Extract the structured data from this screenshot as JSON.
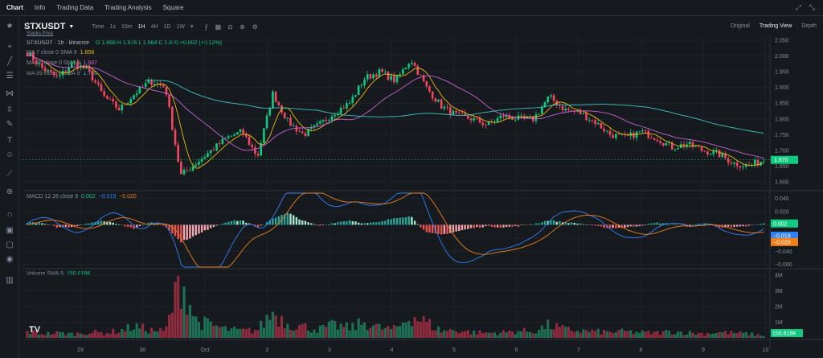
{
  "nav": {
    "tabs": [
      "Chart",
      "Info",
      "Trading Data",
      "Trading Analysis",
      "Square"
    ]
  },
  "symbol": {
    "name": "STXUSDT",
    "sub": "Stacks Price"
  },
  "timeframes": [
    "Time",
    "1s",
    "15m",
    "1H",
    "4H",
    "1D",
    "1W"
  ],
  "timeframe_active": "1H",
  "views": [
    "Original",
    "Trading View",
    "Depth"
  ],
  "view_active": "Trading View",
  "legend": {
    "title": "STXUSDT · 1h · Binance",
    "ohlc": "O 1.668  H 1.676  L 1.664  C 1.670  +0.002 (+0.12%)",
    "ma1": {
      "label": "MA 7 close 0 SMA 9",
      "value": "1.658",
      "color": "#f0b90b"
    },
    "ma2": {
      "label": "MA 25 close 0 SMA 9",
      "value": "1.687",
      "color": "#c860d8"
    },
    "ma3": {
      "label": "MA 99 close 0 SMA 9",
      "value": "1.765",
      "color": "#3fc3c1"
    },
    "macd": {
      "label": "MACD 12 26 close 9",
      "hist": "0.002",
      "macd": "−0.019",
      "signal": "−0.020"
    },
    "volume": {
      "label": "Volume SMA 9",
      "value": "150.818K"
    }
  },
  "icons": {
    "sidebar": [
      "star-icon",
      "crosshair-icon",
      "trendline-icon",
      "fib-icon",
      "pattern-icon",
      "measure-icon",
      "brush-icon",
      "text-icon",
      "emoji-icon",
      "ruler-icon",
      "zoom-icon",
      "magnet-icon",
      "lock-icon",
      "eye-icon",
      "trash-icon"
    ],
    "top": [
      "fullscreen-icon",
      "collapse-icon"
    ]
  },
  "chart_data": [
    {
      "type": "candlestick",
      "title": "STXUSDT · 1h · Binance",
      "y_ticks": [
        "2.050",
        "2.000",
        "1.950",
        "1.900",
        "1.850",
        "1.800",
        "1.750",
        "1.700",
        "1.650",
        "1.600"
      ],
      "ylim": [
        1.58,
        2.065
      ],
      "last_price": "1.670",
      "x_ticks": [
        "29",
        "30",
        "Oct",
        "2",
        "3",
        "4",
        "5",
        "6",
        "7",
        "8",
        "9",
        "10"
      ],
      "close_anchors": [
        2.01,
        1.96,
        1.93,
        1.98,
        1.95,
        1.87,
        1.83,
        1.88,
        1.92,
        1.9,
        1.62,
        1.66,
        1.7,
        1.74,
        1.76,
        1.68,
        1.88,
        1.79,
        1.75,
        1.78,
        1.82,
        1.85,
        1.93,
        1.95,
        1.92,
        1.99,
        1.9,
        1.84,
        1.81,
        1.8,
        1.78,
        1.81,
        1.8,
        1.8,
        1.87,
        1.83,
        1.82,
        1.79,
        1.75,
        1.74,
        1.76,
        1.74,
        1.71,
        1.72,
        1.7,
        1.69,
        1.66,
        1.65,
        1.67
      ],
      "ma_series": [
        "MA 7",
        "MA 25",
        "MA 99"
      ]
    },
    {
      "type": "macd",
      "y_ticks": [
        "0.040",
        "0.020",
        "0.000",
        "−0.020",
        "−0.040",
        "−0.060"
      ],
      "ylim": [
        -0.064,
        0.048
      ],
      "last_values": {
        "hist": "0.002",
        "macd": "−0.019",
        "signal": "−0.020"
      },
      "hist_anchors": [
        0.004,
        0.002,
        -0.004,
        -0.003,
        0.003,
        0.006,
        0.001,
        -0.006,
        0.004,
        -0.002,
        -0.026,
        -0.016,
        -0.004,
        0.005,
        0.007,
        -0.005,
        0.01,
        0.018,
        0.006,
        -0.002,
        0.003,
        0.007,
        0.002,
        0.004,
        0.011,
        0.013,
        -0.012,
        -0.015,
        -0.01,
        -0.005,
        -0.002,
        -0.004,
        -0.002,
        0.001,
        0.007,
        0.004,
        0.002,
        -0.002,
        -0.005,
        -0.004,
        -0.001,
        0.003,
        0.001,
        -0.002,
        0.002,
        -0.003,
        -0.004,
        -0.002,
        0.002
      ]
    },
    {
      "type": "bar",
      "title": "Volume SMA 9",
      "y_ticks": [
        "4M",
        "3M",
        "2M",
        "1M"
      ],
      "ylim": [
        0,
        4300000
      ],
      "last_value": "150.818K",
      "volume_anchors": [
        0.45,
        0.3,
        0.35,
        0.28,
        0.4,
        0.35,
        0.5,
        0.8,
        0.55,
        0.45,
        4.2,
        1.2,
        0.9,
        0.6,
        0.5,
        0.55,
        1.8,
        1.0,
        0.8,
        0.6,
        0.9,
        0.7,
        1.1,
        0.7,
        0.6,
        1.6,
        1.1,
        0.5,
        0.55,
        0.4,
        0.35,
        0.38,
        0.5,
        0.45,
        0.9,
        0.6,
        0.5,
        0.45,
        0.4,
        0.45,
        0.38,
        0.35,
        0.45,
        0.38,
        0.3,
        0.4,
        0.35,
        0.3,
        0.15
      ]
    }
  ]
}
